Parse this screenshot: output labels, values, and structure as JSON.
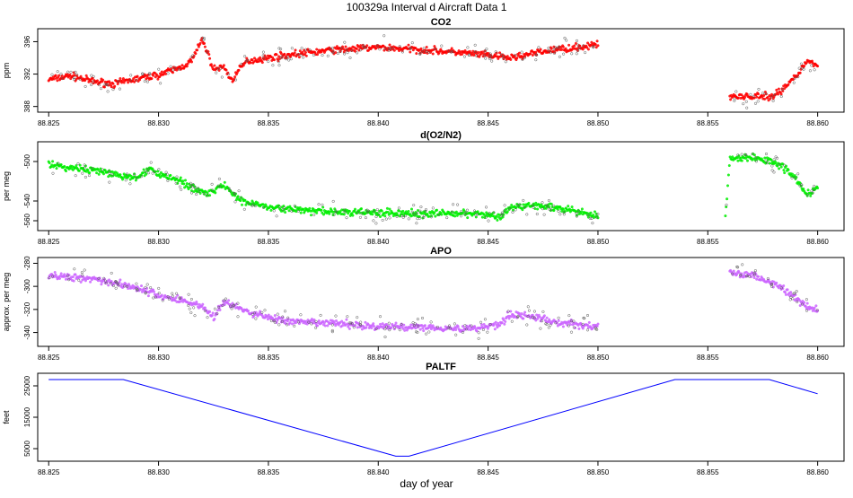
{
  "figure": {
    "title": "100329a   Interval d Aircraft Data 1",
    "xlabel": "day of year"
  },
  "chart_data": [
    {
      "type": "scatter",
      "title": "CO2",
      "ylabel": "ppm",
      "color": "#ff0000",
      "xlim": [
        88.8245,
        88.8612
      ],
      "ylim": [
        387.3,
        397.6
      ],
      "xticks": [
        "88.825",
        "88.830",
        "88.835",
        "88.840",
        "88.845",
        "88.850",
        "88.855",
        "88.860"
      ],
      "yticks": [
        "388",
        "392",
        "396"
      ],
      "series": [
        {
          "segment": "first",
          "x": [
            88.825,
            88.826,
            88.827,
            88.828,
            88.829,
            88.83,
            88.831,
            88.8315,
            88.832,
            88.8325,
            88.833,
            88.8333,
            88.834,
            88.835,
            88.836,
            88.838,
            88.84,
            88.842,
            88.844,
            88.846,
            88.848,
            88.85
          ],
          "y": [
            391.3,
            391.8,
            391.1,
            390.8,
            391.4,
            391.9,
            392.8,
            393.6,
            396.3,
            392.6,
            392.9,
            391.2,
            393.6,
            394.0,
            394.4,
            395.0,
            395.3,
            395.0,
            394.6,
            394.0,
            395.0,
            395.6
          ]
        },
        {
          "segment": "second",
          "x": [
            88.856,
            88.857,
            88.858,
            88.8585,
            88.859,
            88.8595,
            88.86
          ],
          "y": [
            389.3,
            389.2,
            389.3,
            390.3,
            391.8,
            393.6,
            393.0
          ]
        }
      ]
    },
    {
      "type": "scatter",
      "title": "d(O2/N2)",
      "ylabel": "per meg",
      "color": "#00ee00",
      "xlim": [
        88.8245,
        88.8612
      ],
      "ylim": [
        -570,
        -480
      ],
      "xticks": [
        "88.825",
        "88.830",
        "88.835",
        "88.840",
        "88.845",
        "88.850",
        "88.855",
        "88.860"
      ],
      "yticks": [
        "-560",
        "-540",
        "-500"
      ],
      "series": [
        {
          "segment": "first",
          "x": [
            88.825,
            88.827,
            88.829,
            88.8295,
            88.831,
            88.832,
            88.8325,
            88.833,
            88.8335,
            88.834,
            88.836,
            88.838,
            88.84,
            88.842,
            88.844,
            88.8455,
            88.846,
            88.847,
            88.848,
            88.849,
            88.85
          ],
          "y": [
            -504,
            -509,
            -517,
            -508,
            -520,
            -532,
            -529,
            -524,
            -537,
            -541,
            -549,
            -551,
            -552,
            -553,
            -552,
            -556,
            -547,
            -544,
            -547,
            -551,
            -556
          ]
        },
        {
          "segment": "second",
          "x": [
            88.8558,
            88.856,
            88.857,
            88.858,
            88.8585,
            88.859,
            88.8595,
            88.86
          ],
          "y": [
            -556,
            -497,
            -496,
            -500,
            -507,
            -516,
            -533,
            -527
          ]
        }
      ]
    },
    {
      "type": "scatter",
      "title": "APO",
      "ylabel": "approx. per meg",
      "color": "#cc66ff",
      "xlim": [
        88.8245,
        88.8612
      ],
      "ylim": [
        -352,
        -275
      ],
      "xticks": [
        "88.825",
        "88.830",
        "88.835",
        "88.840",
        "88.845",
        "88.850",
        "88.855",
        "88.860"
      ],
      "yticks": [
        "-340",
        "-320",
        "-300",
        "-280"
      ],
      "series": [
        {
          "segment": "first",
          "x": [
            88.825,
            88.827,
            88.829,
            88.83,
            88.831,
            88.832,
            88.8325,
            88.833,
            88.834,
            88.836,
            88.838,
            88.84,
            88.842,
            88.844,
            88.8455,
            88.846,
            88.847,
            88.848,
            88.85
          ],
          "y": [
            -291,
            -293,
            -301,
            -308,
            -312,
            -317,
            -327,
            -313,
            -322,
            -331,
            -332,
            -335,
            -335,
            -337,
            -333,
            -324,
            -326,
            -331,
            -335
          ]
        },
        {
          "segment": "second",
          "x": [
            88.856,
            88.857,
            88.858,
            88.8585,
            88.859,
            88.8595,
            88.86
          ],
          "y": [
            -288,
            -290,
            -298,
            -303,
            -310,
            -318,
            -321
          ]
        }
      ]
    },
    {
      "type": "line",
      "title": "PALTF",
      "ylabel": "feet",
      "color": "#0000ff",
      "xlim": [
        88.8245,
        88.8612
      ],
      "ylim": [
        1000,
        29000
      ],
      "xticks": [
        "88.825",
        "88.830",
        "88.835",
        "88.840",
        "88.845",
        "88.850",
        "88.855",
        "88.860"
      ],
      "yticks": [
        "5000",
        "15000",
        "25000"
      ],
      "series": [
        {
          "x": [
            88.825,
            88.8284,
            88.8408,
            88.8414,
            88.8535,
            88.8578,
            88.86
          ],
          "y": [
            27000,
            27000,
            2600,
            2600,
            27000,
            27000,
            22500
          ]
        }
      ]
    }
  ]
}
